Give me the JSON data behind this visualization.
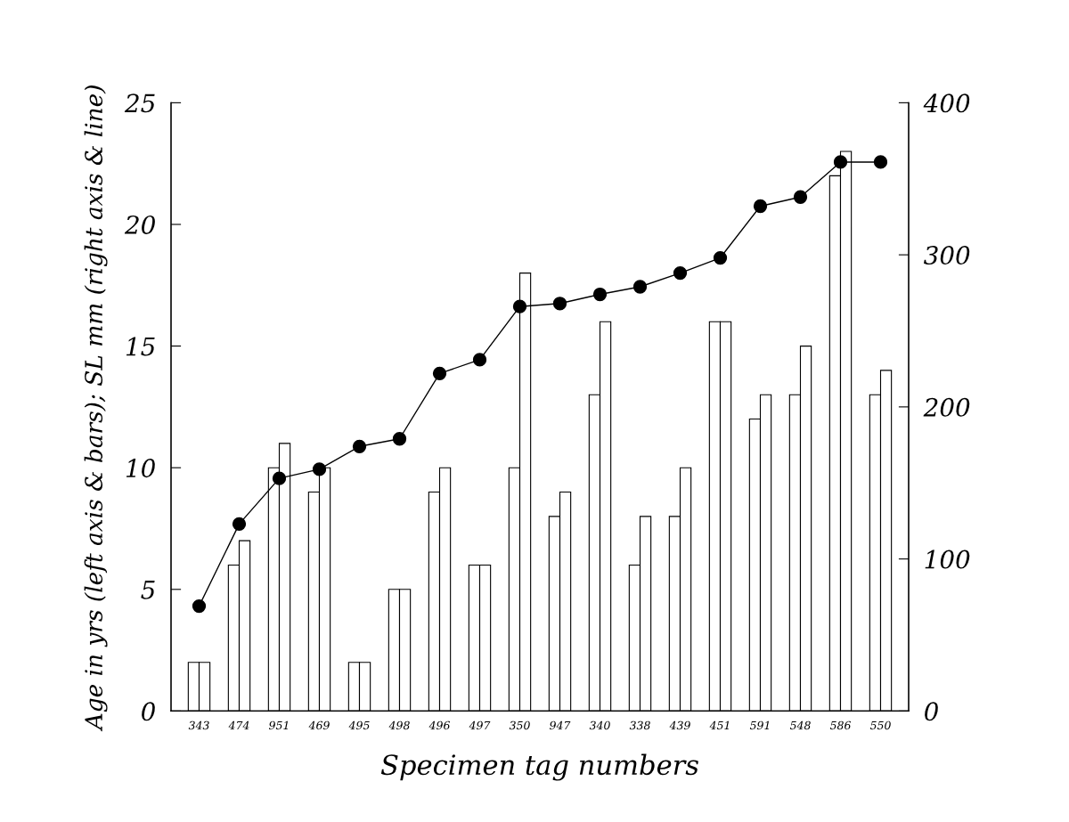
{
  "chart_data": {
    "type": "bar",
    "xlabel": "Specimen tag numbers",
    "ylabel": "Age in yrs (left axis & bars); SL mm (right axis & line)",
    "categories": [
      "343",
      "474",
      "951",
      "469",
      "495",
      "498",
      "496",
      "497",
      "350",
      "947",
      "340",
      "338",
      "439",
      "451",
      "591",
      "548",
      "586",
      "550"
    ],
    "series": [
      {
        "color": "#ffffff",
        "values": [
          2,
          6,
          10,
          9,
          2,
          5,
          9,
          6,
          10,
          8,
          13,
          6,
          8,
          16,
          12,
          13,
          22,
          13
        ]
      },
      {
        "color": "#ffffff",
        "values": [
          2,
          7,
          11,
          10,
          2,
          5,
          10,
          6,
          18,
          9,
          16,
          8,
          10,
          16,
          13,
          15,
          23,
          14
        ]
      },
      {
        "type": "line",
        "axis": "y2",
        "color": "#000000",
        "marker": "circle",
        "line_style": "solid",
        "values": [
          69,
          123,
          153,
          159,
          174,
          179,
          222,
          231,
          266,
          268,
          274,
          279,
          288,
          298,
          332,
          338,
          361,
          361
        ]
      }
    ],
    "ylim": [
      0,
      25
    ],
    "yticks": [
      0,
      5,
      10,
      15,
      20,
      25
    ],
    "y2lim": [
      0,
      400
    ],
    "y2ticks": [
      0,
      100,
      200,
      300,
      400
    ],
    "grid": false,
    "legend": false
  }
}
